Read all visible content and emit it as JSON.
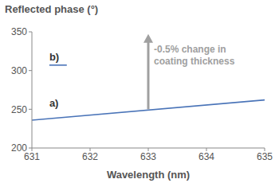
{
  "chart_data": {
    "type": "line",
    "title": "Reflected phase (°)",
    "x_label": "Wavelength (nm)",
    "xlim": [
      631,
      635
    ],
    "xticks": [
      631,
      632,
      633,
      634,
      635
    ],
    "ylim": [
      200,
      350
    ],
    "yticks": [
      200,
      250,
      300,
      350
    ],
    "grid": false,
    "series": [
      {
        "name": "a)",
        "color": "#4a74b8",
        "x": [
          631,
          635
        ],
        "values": [
          236,
          262
        ]
      },
      {
        "name": "b)",
        "color": "#4a74b8",
        "x": [
          631.3,
          631.6
        ],
        "values": [
          307,
          307
        ]
      }
    ],
    "annotations": [
      {
        "text": "a)",
        "x": 631.3,
        "y": 253
      },
      {
        "text": "b)",
        "x": 631.3,
        "y": 313
      }
    ],
    "arrow": {
      "text": [
        "-0.5% change in",
        "coating thickness"
      ],
      "x": 633,
      "y_from": 250,
      "y_to": 338
    }
  }
}
